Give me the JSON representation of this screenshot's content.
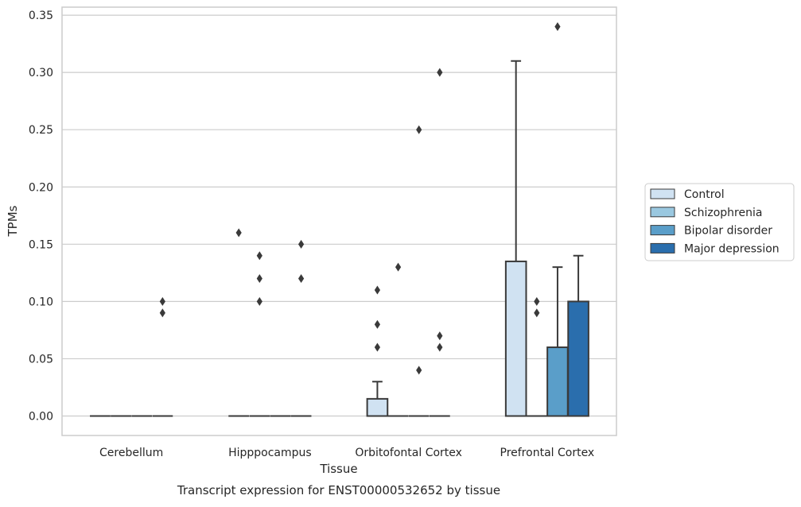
{
  "caption": "Transcript expression for ENST00000532652 by tissue",
  "chart_data": {
    "type": "box",
    "title": "",
    "xlabel": "Tissue",
    "ylabel": "TPMs",
    "ylim": [
      -0.017,
      0.357
    ],
    "yticks": [
      "0.00",
      "0.05",
      "0.10",
      "0.15",
      "0.20",
      "0.25",
      "0.30",
      "0.35"
    ],
    "ytick_values": [
      0,
      0.05,
      0.1,
      0.15,
      0.2,
      0.25,
      0.3,
      0.35
    ],
    "grid": "horizontal",
    "legend_position": "right",
    "categories": [
      "Cerebellum",
      "Hipppocampus",
      "Orbitofontal Cortex",
      "Prefrontal Cortex"
    ],
    "series": [
      {
        "name": "Control",
        "color": "#d0e2f2",
        "boxes": [
          {
            "q1": 0,
            "median": 0,
            "q3": 0,
            "whisker_low": 0,
            "whisker_high": 0,
            "outliers": []
          },
          {
            "q1": 0,
            "median": 0,
            "q3": 0,
            "whisker_low": 0,
            "whisker_high": 0,
            "outliers": [
              0.16
            ]
          },
          {
            "q1": 0,
            "median": 0,
            "q3": 0.015,
            "whisker_low": 0,
            "whisker_high": 0.03,
            "outliers": [
              0.06,
              0.08,
              0.11
            ]
          },
          {
            "q1": 0,
            "median": 0,
            "q3": 0.135,
            "whisker_low": 0,
            "whisker_high": 0.31,
            "outliers": []
          }
        ]
      },
      {
        "name": "Schizophrenia",
        "color": "#9ac8e0",
        "boxes": [
          {
            "q1": 0,
            "median": 0,
            "q3": 0,
            "whisker_low": 0,
            "whisker_high": 0,
            "outliers": []
          },
          {
            "q1": 0,
            "median": 0,
            "q3": 0,
            "whisker_low": 0,
            "whisker_high": 0,
            "outliers": [
              0.1,
              0.12,
              0.14
            ]
          },
          {
            "q1": 0,
            "median": 0,
            "q3": 0,
            "whisker_low": 0,
            "whisker_high": 0,
            "outliers": [
              0.13
            ]
          },
          {
            "q1": 0,
            "median": 0,
            "q3": 0,
            "whisker_low": 0,
            "whisker_high": 0,
            "outliers": [
              0.09,
              0.1
            ]
          }
        ]
      },
      {
        "name": "Bipolar disorder",
        "color": "#5a9ec9",
        "boxes": [
          {
            "q1": 0,
            "median": 0,
            "q3": 0,
            "whisker_low": 0,
            "whisker_high": 0,
            "outliers": []
          },
          {
            "q1": 0,
            "median": 0,
            "q3": 0,
            "whisker_low": 0,
            "whisker_high": 0,
            "outliers": []
          },
          {
            "q1": 0,
            "median": 0,
            "q3": 0,
            "whisker_low": 0,
            "whisker_high": 0,
            "outliers": [
              0.04,
              0.25
            ]
          },
          {
            "q1": 0,
            "median": 0,
            "q3": 0.06,
            "whisker_low": 0,
            "whisker_high": 0.13,
            "outliers": [
              0.34
            ]
          }
        ]
      },
      {
        "name": "Major depression",
        "color": "#2a6ead",
        "boxes": [
          {
            "q1": 0,
            "median": 0,
            "q3": 0,
            "whisker_low": 0,
            "whisker_high": 0,
            "outliers": [
              0.09,
              0.1
            ]
          },
          {
            "q1": 0,
            "median": 0,
            "q3": 0,
            "whisker_low": 0,
            "whisker_high": 0,
            "outliers": [
              0.12,
              0.15
            ]
          },
          {
            "q1": 0,
            "median": 0,
            "q3": 0,
            "whisker_low": 0,
            "whisker_high": 0,
            "outliers": [
              0.06,
              0.07,
              0.3
            ]
          },
          {
            "q1": 0,
            "median": 0,
            "q3": 0.1,
            "whisker_low": 0,
            "whisker_high": 0.14,
            "outliers": []
          }
        ]
      }
    ]
  }
}
